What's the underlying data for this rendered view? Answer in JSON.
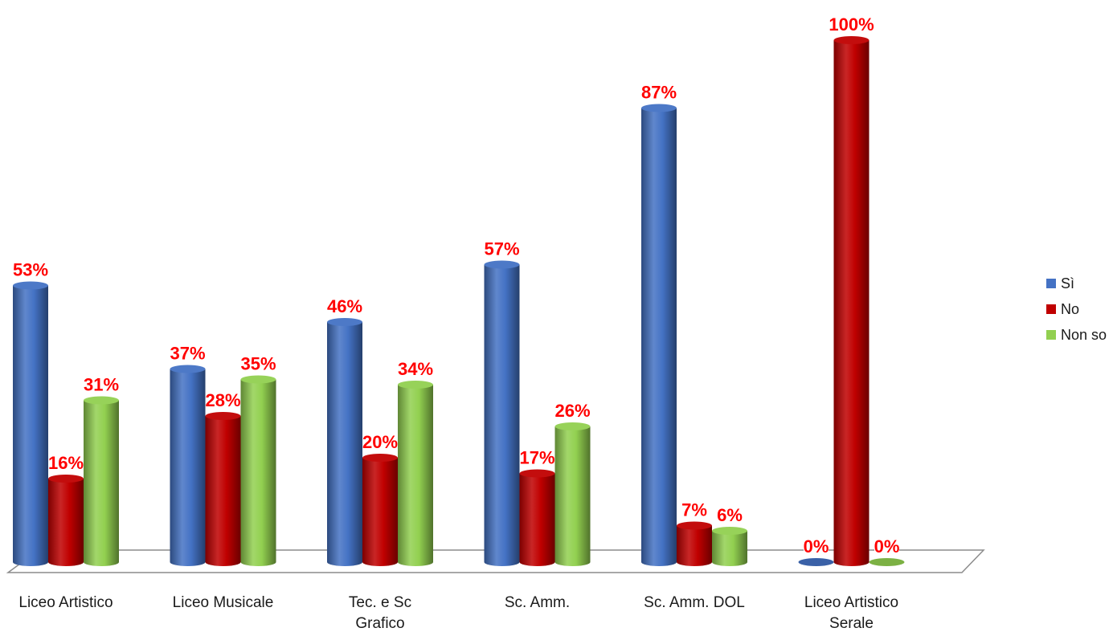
{
  "chart_data": {
    "type": "bar",
    "style": "3d-cylinder",
    "title": "",
    "xlabel": "",
    "ylabel": "",
    "ylim": [
      0,
      100
    ],
    "grid": false,
    "legend_position": "right",
    "categories": [
      [
        "Liceo Artistico"
      ],
      [
        "Liceo Musicale"
      ],
      [
        "Tec.  e Sc",
        "Grafico"
      ],
      [
        "Sc. Amm."
      ],
      [
        "Sc. Amm. DOL"
      ],
      [
        "Liceo Artistico",
        "Serale"
      ]
    ],
    "series": [
      {
        "name": "Sì",
        "color": "#4472C4",
        "values": [
          53,
          37,
          46,
          57,
          87,
          0
        ],
        "labels": [
          "53%",
          "37%",
          "46%",
          "57%",
          "87%",
          "0%"
        ]
      },
      {
        "name": "No",
        "color": "#C00000",
        "values": [
          16,
          28,
          20,
          17,
          7,
          100
        ],
        "labels": [
          "16%",
          "28%",
          "20%",
          "17%",
          "7%",
          "100%"
        ]
      },
      {
        "name": "Non so",
        "color": "#92D050",
        "values": [
          31,
          35,
          34,
          26,
          6,
          0
        ],
        "labels": [
          "31%",
          "35%",
          "34%",
          "26%",
          "6%",
          "0%"
        ]
      }
    ],
    "label_color": "#FF0000"
  }
}
